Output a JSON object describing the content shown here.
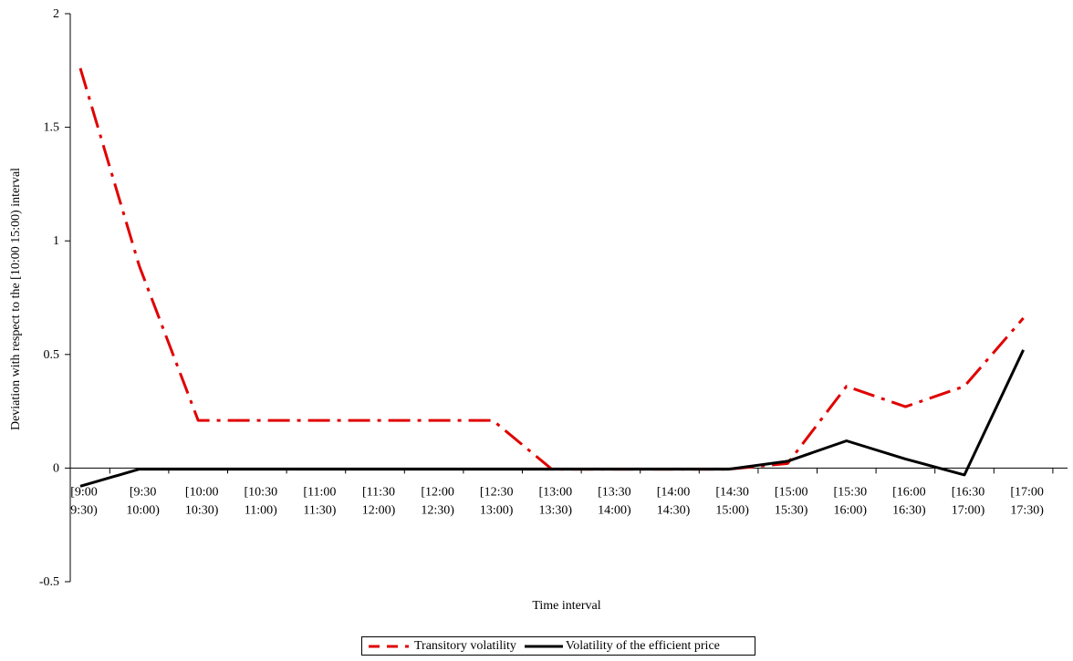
{
  "chart_data": {
    "type": "line",
    "title": "",
    "xlabel": "Time interval",
    "ylabel": "Deviation with respect to the [10:00 15:00) interval",
    "ylim": [
      -0.5,
      2
    ],
    "yticks": [
      "2",
      "1.5",
      "1",
      "0.5",
      "0",
      "-0.5"
    ],
    "ytick_values": [
      2,
      1.5,
      1,
      0.5,
      0,
      -0.5
    ],
    "grid": false,
    "legend_position": "bottom",
    "categories": [
      [
        "[9:00",
        "9:30)"
      ],
      [
        "[9:30",
        "10:00)"
      ],
      [
        "[10:00",
        "10:30)"
      ],
      [
        "[10:30",
        "11:00)"
      ],
      [
        "[11:00",
        "11:30)"
      ],
      [
        "[11:30",
        "12:00)"
      ],
      [
        "[12:00",
        "12:30)"
      ],
      [
        "[12:30",
        "13:00)"
      ],
      [
        "[13:00",
        "13:30)"
      ],
      [
        "[13:30",
        "14:00)"
      ],
      [
        "[14:00",
        "14:30)"
      ],
      [
        "[14:30",
        "15:00)"
      ],
      [
        "[15:00",
        "15:30)"
      ],
      [
        "[15:30",
        "16:00)"
      ],
      [
        "[16:00",
        "16:30)"
      ],
      [
        "[16:30",
        "17:00)"
      ],
      [
        "[17:00",
        "17:30)"
      ]
    ],
    "series": [
      {
        "name": "Transitory volatility",
        "color": "#e00000",
        "style": "dash-dot",
        "values": [
          1.76,
          0.89,
          0.21,
          0.21,
          0.21,
          0.21,
          0.21,
          0.21,
          -0.005,
          -0.005,
          -0.005,
          -0.005,
          0.02,
          0.36,
          0.27,
          0.36,
          0.66
        ]
      },
      {
        "name": "Volatility of the efficient price",
        "color": "#000000",
        "style": "solid",
        "values": [
          -0.08,
          -0.005,
          -0.005,
          -0.005,
          -0.005,
          -0.005,
          -0.005,
          -0.005,
          -0.005,
          -0.005,
          -0.005,
          -0.005,
          0.03,
          0.12,
          0.04,
          -0.03,
          0.52
        ]
      }
    ]
  }
}
